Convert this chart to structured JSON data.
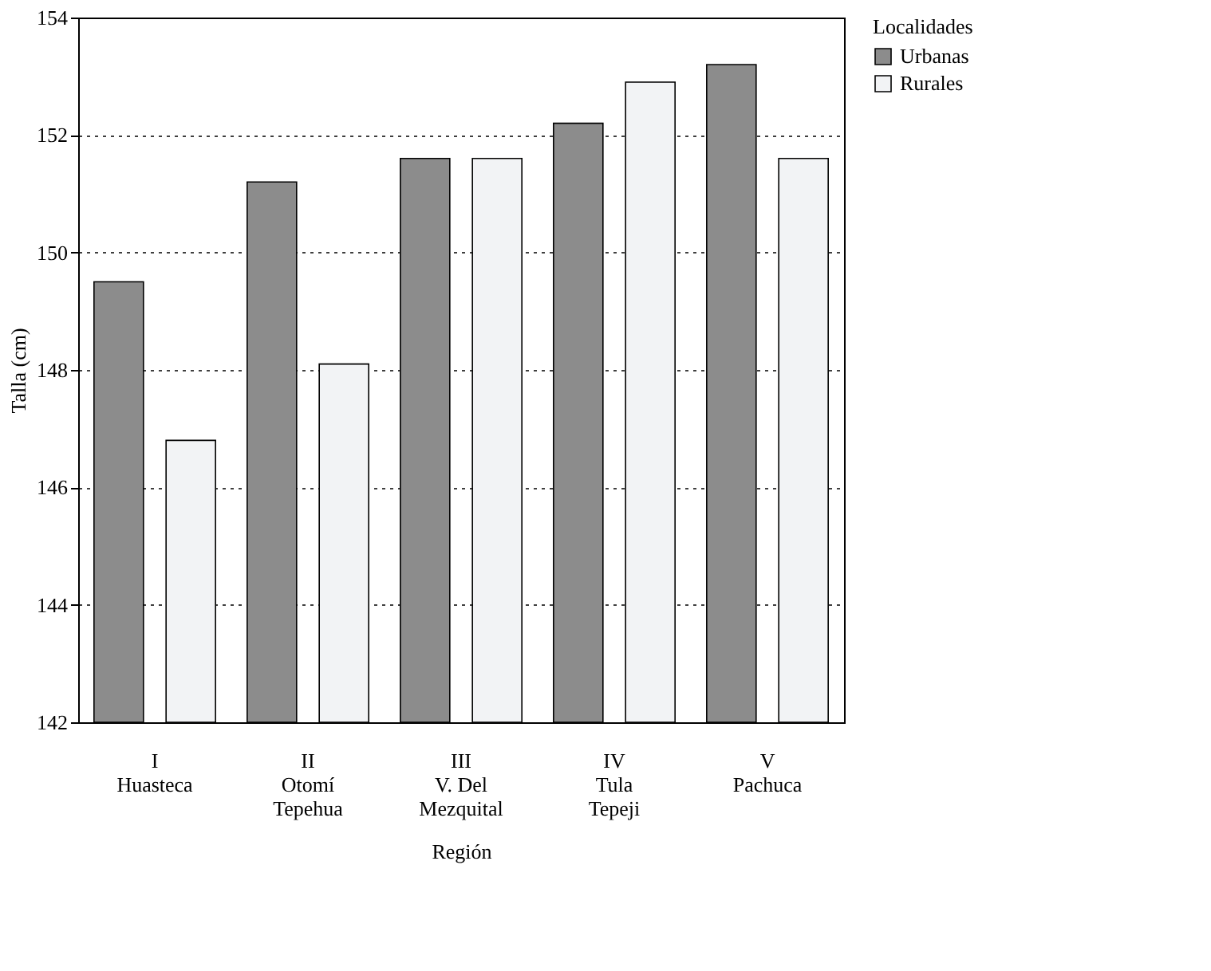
{
  "chart_data": {
    "type": "bar",
    "xlabel": "Región",
    "ylabel": "Talla (cm)",
    "legend_title": "Localidades",
    "categories": [
      "I\nHuasteca",
      "II\nOtomí\nTepehua",
      "III\nV. Del\nMezquital",
      "IV\nTula\nTepeji",
      "V\nPachuca"
    ],
    "series": [
      {
        "name": "Urbanas",
        "color": "#8c8c8c",
        "values": [
          149.5,
          151.2,
          151.6,
          152.2,
          153.2
        ]
      },
      {
        "name": "Rurales",
        "color": "#f2f3f5",
        "values": [
          146.8,
          148.1,
          151.6,
          152.9,
          151.6
        ]
      }
    ],
    "ylim": [
      142,
      154
    ],
    "yticks": [
      142,
      144,
      146,
      148,
      150,
      152,
      154
    ],
    "grid": "y",
    "legend": "right"
  }
}
